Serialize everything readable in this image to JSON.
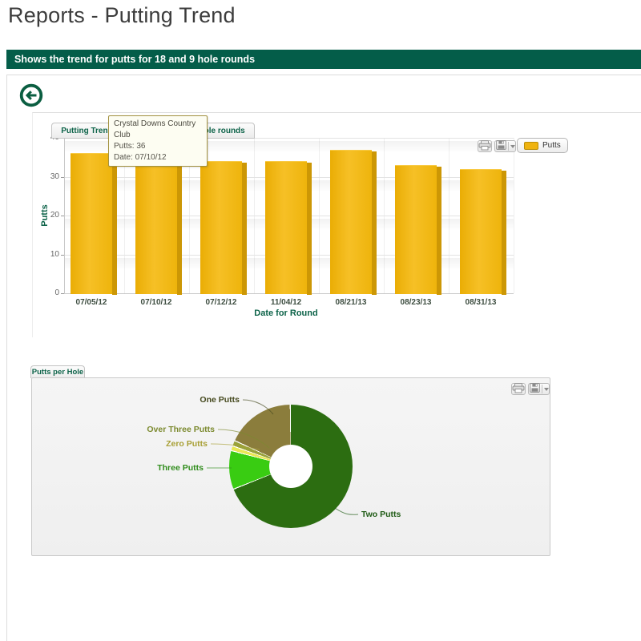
{
  "page": {
    "title": "Reports - Putting Trend",
    "banner": "Shows the trend for putts for 18 and 9 hole rounds"
  },
  "colors": {
    "banner_green": "#045d49",
    "accent_teal": "#0d6349",
    "bar_yellow": "#efb310"
  },
  "icons": {
    "back": "arrow-left-circle",
    "print": "printer",
    "save": "floppy-disk",
    "save_menu": "chevron-down"
  },
  "trend_chart": {
    "tooltip": {
      "title": "Crystal Downs Country Club",
      "line1": "Putts: 36",
      "line2": "Date: 07/10/12"
    }
  },
  "chart_data": [
    {
      "type": "bar",
      "title": "Putting Trend for Bo Bechard for 18 hole rounds",
      "categories": [
        "07/05/12",
        "07/10/12",
        "07/12/12",
        "11/04/12",
        "08/21/13",
        "08/23/13",
        "08/31/13"
      ],
      "series": [
        {
          "name": "Putts",
          "color": "#efb310",
          "values": [
            36,
            36,
            34,
            34,
            37,
            33,
            32
          ]
        }
      ],
      "xlabel": "Date for Round",
      "ylabel": "Putts",
      "ylim": [
        0,
        40
      ],
      "yticks": [
        0,
        10,
        20,
        30,
        40
      ],
      "grid": true,
      "legend_position": "top-right"
    },
    {
      "type": "pie",
      "title": "Putts per Hole",
      "donut": true,
      "legend_position": "none",
      "segments": [
        {
          "label": "Two Putts",
          "percent": 69.8,
          "color": "#2c6d11",
          "label_color": "#1e5a14"
        },
        {
          "label": "Three Putts",
          "percent": 10.0,
          "color": "#39cc12",
          "label_color": "#2f8c1b"
        },
        {
          "label": "Zero Putts",
          "percent": 1.0,
          "color": "#e9e754",
          "label_color": "#a89f35"
        },
        {
          "label": "Over Three Putts",
          "percent": 1.2,
          "color": "#99a23a",
          "label_color": "#7c8a2f"
        },
        {
          "label": "One Putts",
          "percent": 18.0,
          "color": "#8b7d3c",
          "label_color": "#45491e"
        }
      ]
    }
  ]
}
